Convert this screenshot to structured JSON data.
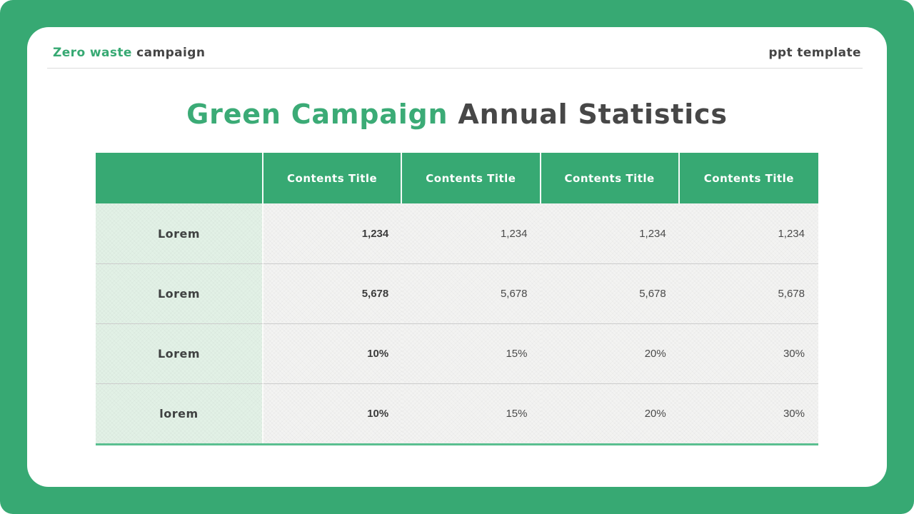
{
  "brand": {
    "highlight": "Zero waste",
    "rest": "campaign"
  },
  "header_right": "ppt template",
  "title": {
    "highlight": "Green Campaign",
    "rest": "Annual Statistics"
  },
  "table": {
    "column_headers": [
      "Contents Title",
      "Contents Title",
      "Contents Title",
      "Contents Title"
    ],
    "rows": [
      {
        "label": "Lorem",
        "values": [
          "1,234",
          "1,234",
          "1,234",
          "1,234"
        ]
      },
      {
        "label": "Lorem",
        "values": [
          "5,678",
          "5,678",
          "5,678",
          "5,678"
        ]
      },
      {
        "label": "Lorem",
        "values": [
          "10%",
          "15%",
          "20%",
          "30%"
        ]
      },
      {
        "label": "lorem",
        "values": [
          "10%",
          "15%",
          "20%",
          "30%"
        ]
      }
    ]
  },
  "colors": {
    "accent_green": "#37a973",
    "label_cell_green": "#e2f1e6",
    "body_cell_gray": "#f3f3f2",
    "table_bottom_border": "#5abf90",
    "dark_text": "#474747"
  }
}
